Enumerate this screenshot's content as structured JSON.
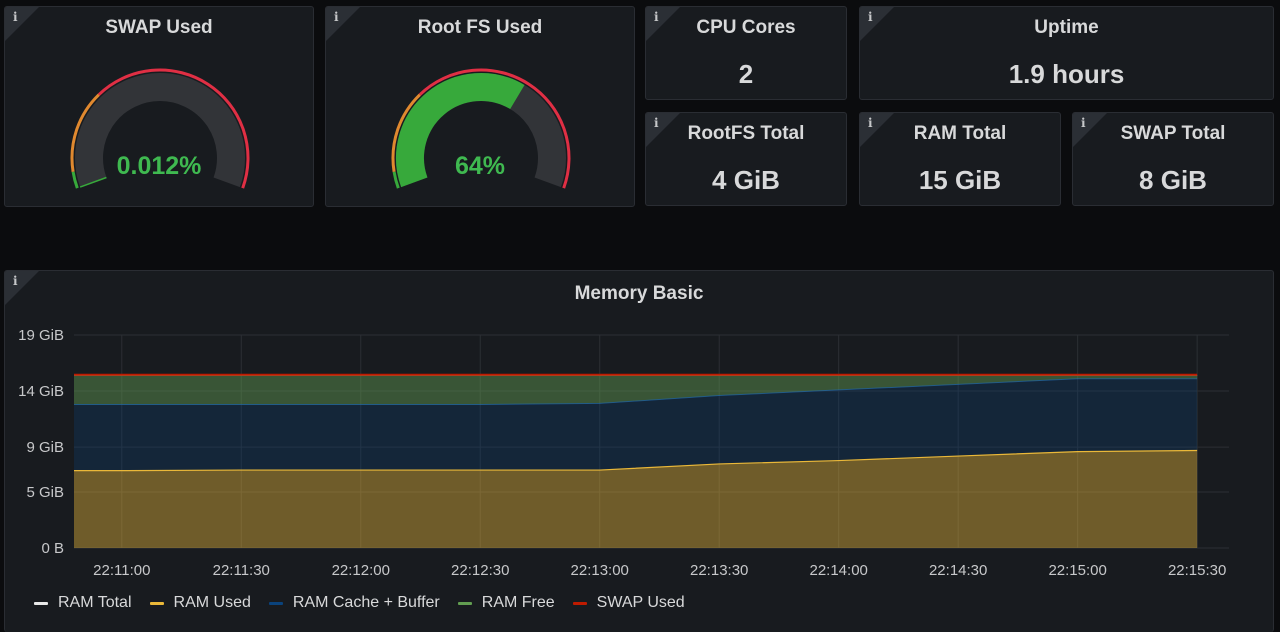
{
  "info_glyph": "i",
  "swap_used": {
    "title": "SWAP Used",
    "value": "0.012%",
    "fraction": 0.00012
  },
  "rootfs_used": {
    "title": "Root FS Used",
    "value": "64%",
    "fraction": 0.64
  },
  "cpu_cores": {
    "title": "CPU Cores",
    "value": "2"
  },
  "uptime": {
    "title": "Uptime",
    "value": "1.9 hours"
  },
  "rootfs_total": {
    "title": "RootFS Total",
    "value": "4 GiB"
  },
  "ram_total": {
    "title": "RAM Total",
    "value": "15 GiB"
  },
  "swap_total": {
    "title": "SWAP Total",
    "value": "8 GiB"
  },
  "colors": {
    "green": "#37a93b",
    "orange": "#e0892f",
    "red": "#e02f44",
    "ram_total": "#e8e8e8",
    "ram_used": "#eab839",
    "ram_cache": "#0a437c",
    "ram_free": "#629e51",
    "swap_used": "#bf1b00"
  },
  "memory": {
    "title": "Memory Basic",
    "legend": [
      {
        "label": "RAM Total",
        "color": "#e8e8e8"
      },
      {
        "label": "RAM Used",
        "color": "#eab839"
      },
      {
        "label": "RAM Cache + Buffer",
        "color": "#0a437c"
      },
      {
        "label": "RAM Free",
        "color": "#629e51"
      },
      {
        "label": "SWAP Used",
        "color": "#bf1b00"
      }
    ]
  },
  "chart_data": {
    "type": "area",
    "title": "Memory Basic",
    "y_ticks": [
      "19 GiB",
      "14 GiB",
      "9 GiB",
      "5 GiB",
      "0 B"
    ],
    "y_tick_values": [
      19,
      14,
      9,
      5,
      0
    ],
    "ylim": [
      0,
      19
    ],
    "x_ticks": [
      "22:11:00",
      "22:11:30",
      "22:12:00",
      "22:12:30",
      "22:13:00",
      "22:13:30",
      "22:14:00",
      "22:14:30",
      "22:15:00",
      "22:15:30"
    ],
    "xlim": [
      "22:10:48",
      "22:15:38"
    ],
    "grid": true,
    "legend_position": "bottom-left",
    "x": [
      "22:10:48",
      "22:11:00",
      "22:11:30",
      "22:12:00",
      "22:12:30",
      "22:13:00",
      "22:13:30",
      "22:14:00",
      "22:14:30",
      "22:15:00",
      "22:15:30"
    ],
    "series": [
      {
        "name": "RAM Total",
        "values": [
          15.4,
          15.4,
          15.4,
          15.4,
          15.4,
          15.4,
          15.4,
          15.4,
          15.4,
          15.4,
          15.4
        ]
      },
      {
        "name": "RAM Used",
        "values": [
          6.9,
          6.9,
          6.95,
          6.95,
          6.95,
          6.95,
          7.5,
          7.8,
          8.2,
          8.6,
          8.7
        ]
      },
      {
        "name": "RAM Cache + Buffer",
        "values": [
          5.9,
          5.9,
          5.85,
          5.85,
          5.85,
          5.95,
          6.1,
          6.3,
          6.4,
          6.5,
          6.4
        ]
      },
      {
        "name": "RAM Free",
        "values": [
          2.6,
          2.6,
          2.6,
          2.6,
          2.6,
          2.5,
          1.8,
          1.3,
          0.8,
          0.3,
          0.3
        ]
      },
      {
        "name": "SWAP Used",
        "values": [
          0.001,
          0.001,
          0.001,
          0.001,
          0.001,
          0.001,
          0.001,
          0.001,
          0.001,
          0.001,
          0.001
        ]
      }
    ]
  }
}
